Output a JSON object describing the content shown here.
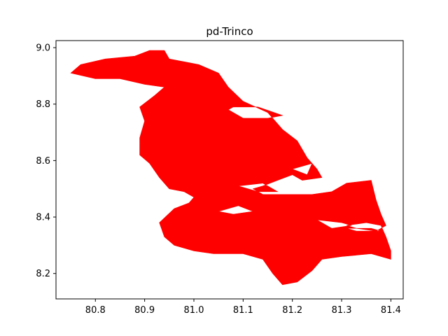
{
  "chart_data": {
    "type": "map",
    "title": "pd-Trinco",
    "xlabel": "",
    "ylabel": "",
    "xlim": [
      80.72,
      81.425
    ],
    "ylim": [
      8.11,
      9.025
    ],
    "xticks": [
      "80.8",
      "80.9",
      "81.0",
      "81.1",
      "81.2",
      "81.3",
      "81.4"
    ],
    "yticks": [
      "8.2",
      "8.4",
      "8.6",
      "8.8",
      "9.0"
    ],
    "grid": false,
    "fill_color": "#ff0000",
    "region": {
      "name": "pd-Trinco",
      "outline": [
        [
          80.75,
          8.91
        ],
        [
          80.77,
          8.94
        ],
        [
          80.82,
          8.96
        ],
        [
          80.88,
          8.97
        ],
        [
          80.91,
          8.99
        ],
        [
          80.94,
          8.99
        ],
        [
          80.95,
          8.96
        ],
        [
          80.98,
          8.95
        ],
        [
          81.01,
          8.94
        ],
        [
          81.05,
          8.91
        ],
        [
          81.07,
          8.86
        ],
        [
          81.1,
          8.81
        ],
        [
          81.15,
          8.77
        ],
        [
          81.18,
          8.71
        ],
        [
          81.21,
          8.67
        ],
        [
          81.23,
          8.61
        ],
        [
          81.25,
          8.57
        ],
        [
          81.26,
          8.54
        ],
        [
          81.22,
          8.53
        ],
        [
          81.2,
          8.55
        ],
        [
          81.17,
          8.53
        ],
        [
          81.14,
          8.51
        ],
        [
          81.12,
          8.5
        ],
        [
          81.14,
          8.48
        ],
        [
          81.2,
          8.48
        ],
        [
          81.24,
          8.48
        ],
        [
          81.28,
          8.49
        ],
        [
          81.31,
          8.52
        ],
        [
          81.36,
          8.53
        ],
        [
          81.37,
          8.46
        ],
        [
          81.38,
          8.41
        ],
        [
          81.39,
          8.37
        ],
        [
          81.37,
          8.35
        ],
        [
          81.33,
          8.36
        ],
        [
          81.31,
          8.37
        ],
        [
          81.35,
          8.38
        ],
        [
          81.38,
          8.37
        ],
        [
          81.39,
          8.33
        ],
        [
          81.4,
          8.28
        ],
        [
          81.4,
          8.25
        ],
        [
          81.36,
          8.27
        ],
        [
          81.3,
          8.26
        ],
        [
          81.26,
          8.25
        ],
        [
          81.24,
          8.21
        ],
        [
          81.21,
          8.17
        ],
        [
          81.18,
          8.16
        ],
        [
          81.16,
          8.2
        ],
        [
          81.14,
          8.25
        ],
        [
          81.1,
          8.27
        ],
        [
          81.04,
          8.27
        ],
        [
          81.0,
          8.28
        ],
        [
          80.96,
          8.3
        ],
        [
          80.94,
          8.33
        ],
        [
          80.93,
          8.38
        ],
        [
          80.96,
          8.43
        ],
        [
          80.99,
          8.45
        ],
        [
          81.0,
          8.47
        ],
        [
          80.98,
          8.49
        ],
        [
          80.95,
          8.5
        ],
        [
          80.93,
          8.54
        ],
        [
          80.91,
          8.59
        ],
        [
          80.89,
          8.62
        ],
        [
          80.89,
          8.68
        ],
        [
          80.9,
          8.74
        ],
        [
          80.89,
          8.79
        ],
        [
          80.92,
          8.83
        ],
        [
          80.94,
          8.86
        ],
        [
          80.9,
          8.87
        ],
        [
          80.85,
          8.89
        ],
        [
          80.8,
          8.89
        ],
        [
          80.75,
          8.91
        ]
      ],
      "holes": [
        [
          [
            81.07,
            8.78
          ],
          [
            81.1,
            8.75
          ],
          [
            81.15,
            8.75
          ],
          [
            81.18,
            8.76
          ],
          [
            81.13,
            8.79
          ],
          [
            81.08,
            8.79
          ],
          [
            81.07,
            8.78
          ]
        ],
        [
          [
            81.09,
            8.51
          ],
          [
            81.13,
            8.49
          ],
          [
            81.17,
            8.49
          ],
          [
            81.14,
            8.52
          ],
          [
            81.09,
            8.51
          ]
        ],
        [
          [
            81.2,
            8.57
          ],
          [
            81.23,
            8.55
          ],
          [
            81.24,
            8.59
          ],
          [
            81.2,
            8.57
          ]
        ],
        [
          [
            81.05,
            8.42
          ],
          [
            81.08,
            8.41
          ],
          [
            81.12,
            8.42
          ],
          [
            81.09,
            8.44
          ],
          [
            81.05,
            8.42
          ]
        ],
        [
          [
            81.25,
            8.39
          ],
          [
            81.3,
            8.38
          ],
          [
            81.32,
            8.37
          ],
          [
            81.28,
            8.36
          ],
          [
            81.25,
            8.39
          ]
        ],
        [
          [
            81.31,
            8.36
          ],
          [
            81.36,
            8.36
          ],
          [
            81.38,
            8.35
          ],
          [
            81.33,
            8.35
          ],
          [
            81.31,
            8.36
          ]
        ]
      ]
    }
  }
}
